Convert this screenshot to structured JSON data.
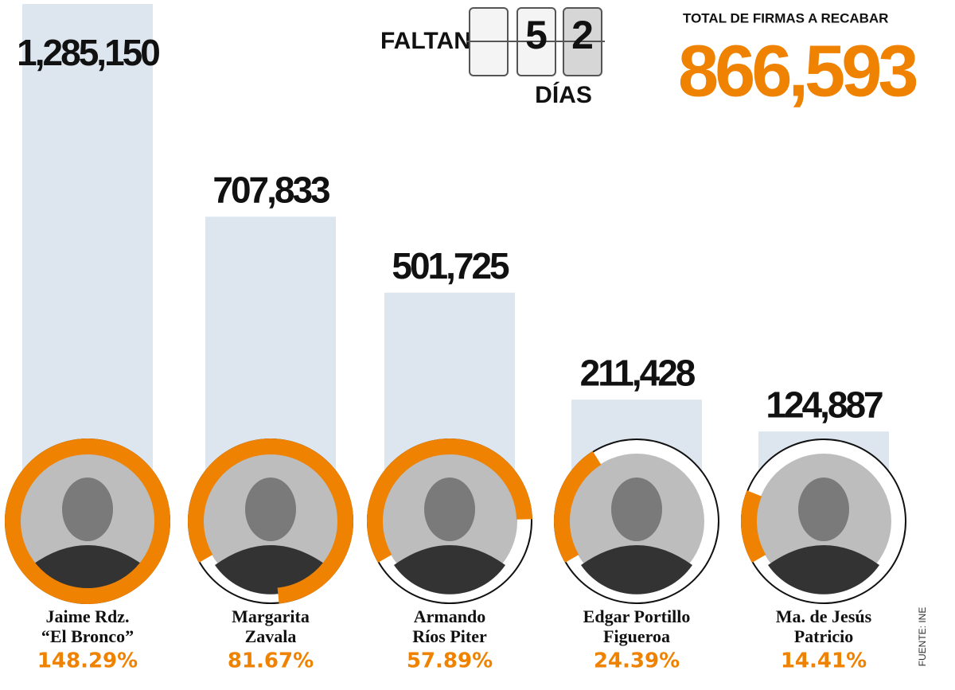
{
  "chart_data": {
    "type": "bar",
    "categories": [
      [
        "Jaime Rdz.",
        "“El Bronco”"
      ],
      [
        "Margarita",
        "Zavala"
      ],
      [
        "Armando",
        "Ríos Piter"
      ],
      [
        "Edgar Portillo",
        "Figueroa"
      ],
      [
        "Ma. de Jesús",
        "Patricio"
      ]
    ],
    "values": [
      1285150,
      707833,
      501725,
      211428,
      124887
    ],
    "value_labels": [
      "1,285,150",
      "707,833",
      "501,725",
      "211,428",
      "124,887"
    ],
    "color": "#dde6ef",
    "percent": {
      "values": [
        148.29,
        81.67,
        57.89,
        24.39,
        14.41
      ],
      "value_labels": [
        "148.29%",
        "81.67%",
        "57.89%",
        "24.39%",
        "14.41%"
      ],
      "color": "#ef8200"
    },
    "countdown": {
      "label": "FALTAN",
      "digits": [
        "5",
        "2"
      ],
      "unit": "DÍAS"
    },
    "total": {
      "label": "TOTAL DE FIRMAS A RECABAR",
      "value": "866,593"
    },
    "source": "FUENTE: INE"
  }
}
